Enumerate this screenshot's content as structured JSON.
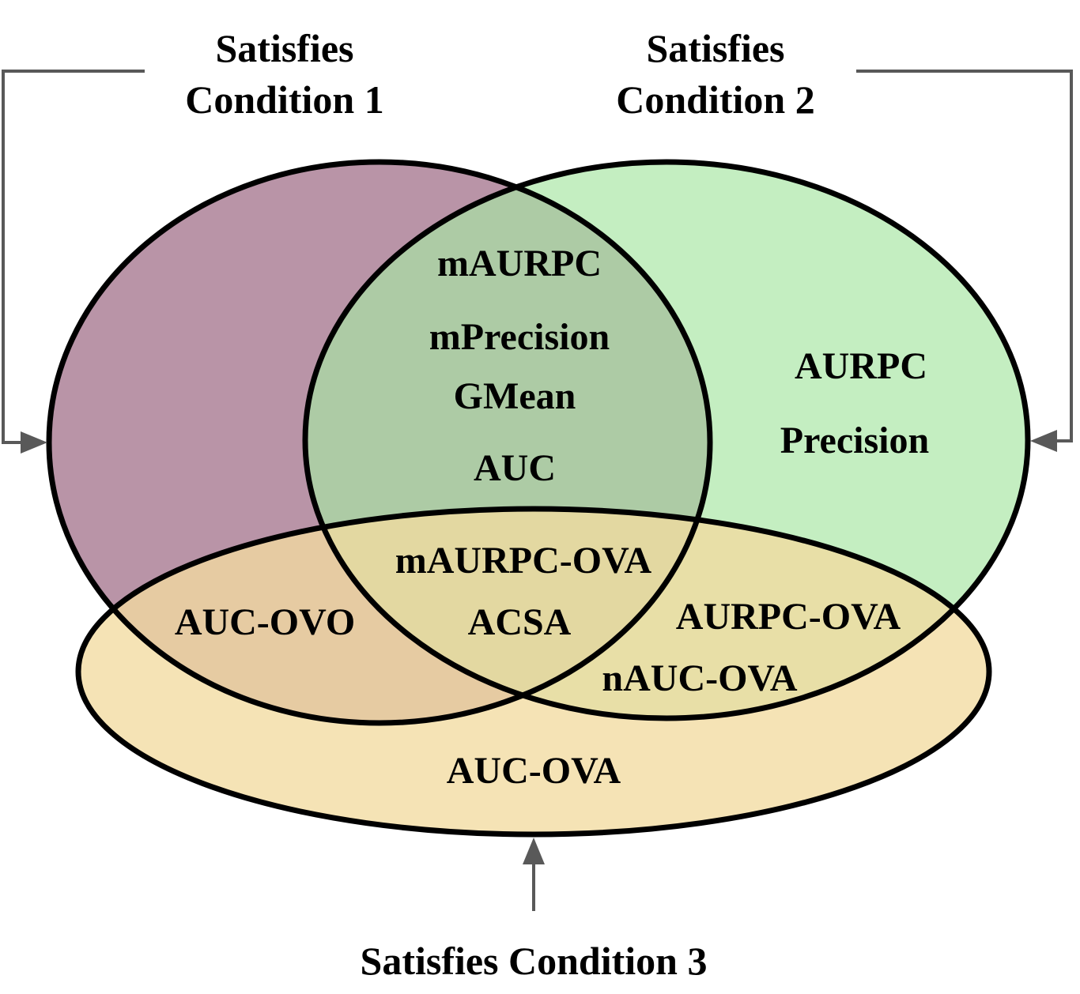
{
  "conditions": {
    "c1": {
      "line1": "Satisfies",
      "line2": "Condition 1"
    },
    "c2": {
      "line1": "Satisfies",
      "line2": "Condition 2"
    },
    "c3": {
      "label": "Satisfies Condition 3"
    }
  },
  "regions": {
    "c1_c2": [
      "mAURPC",
      "mPrecision",
      "GMean",
      "AUC"
    ],
    "c2_only": [
      "AURPC",
      "Precision"
    ],
    "c1_c3": [
      "AUC-OVO"
    ],
    "c1_c2_c3": [
      "mAURPC-OVA",
      "ACSA"
    ],
    "c2_c3": [
      "AURPC-OVA",
      "nAUC-OVA"
    ],
    "c3_only": [
      "AUC-OVA"
    ]
  },
  "colors": {
    "condition1_fill": "#a97c94",
    "condition2_fill": "#a8e6a3",
    "condition3_fill": "#f2dba0",
    "outline": "#000000",
    "connector": "#595959"
  },
  "icons": {
    "connector_arrow": "arrow-head-icon"
  }
}
